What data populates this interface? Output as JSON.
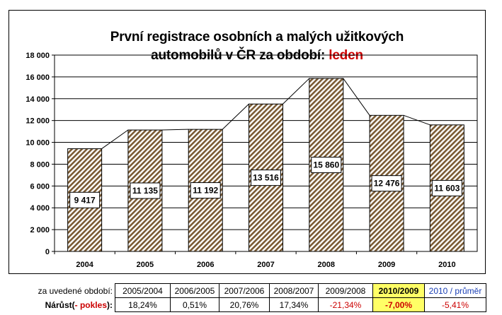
{
  "title_line1": "První registrace osobních a malých užitkových",
  "title_line2_prefix": "automobilů v ČR za období: ",
  "title_line2_highlight": "leden",
  "chart_data": {
    "type": "bar",
    "categories": [
      "2004",
      "2005",
      "2006",
      "2007",
      "2008",
      "2009",
      "2010"
    ],
    "values": [
      9417,
      11135,
      11192,
      13516,
      15860,
      12476,
      11603
    ],
    "value_labels": [
      "9 417",
      "11 135",
      "11 192",
      "13 516",
      "15 860",
      "12 476",
      "11 603"
    ],
    "ylim": [
      0,
      18000
    ],
    "yticks": [
      "0",
      "2 000",
      "4 000",
      "6 000",
      "8 000",
      "10 000",
      "12 000",
      "14 000",
      "16 000",
      "18 000"
    ],
    "ytick_values": [
      0,
      2000,
      4000,
      6000,
      8000,
      10000,
      12000,
      14000,
      16000,
      18000
    ],
    "grid": true,
    "connector_line": true,
    "bar_fill": "hatched brown",
    "colors": {
      "hatch": "#7a5a32",
      "bar_bg": "#ffffff",
      "grid": "#000000"
    }
  },
  "growth_table": {
    "row1_label": "za uvedené období:",
    "row2_label_prefix": "Nárůst(",
    "row2_label_red": "- pokles",
    "row2_label_suffix": "):",
    "periods": [
      "2005/2004",
      "2006/2005",
      "2007/2006",
      "2008/2007",
      "2009/2008",
      "2010/2009",
      "2010 / průměr"
    ],
    "values": [
      "18,24%",
      "0,51%",
      "20,76%",
      "17,34%",
      "-21,34%",
      "-7,00%",
      "-5,41%"
    ],
    "highlight_color": "#ffff66",
    "negative_color": "#cc0000",
    "average_color": "#1a3fb5"
  }
}
